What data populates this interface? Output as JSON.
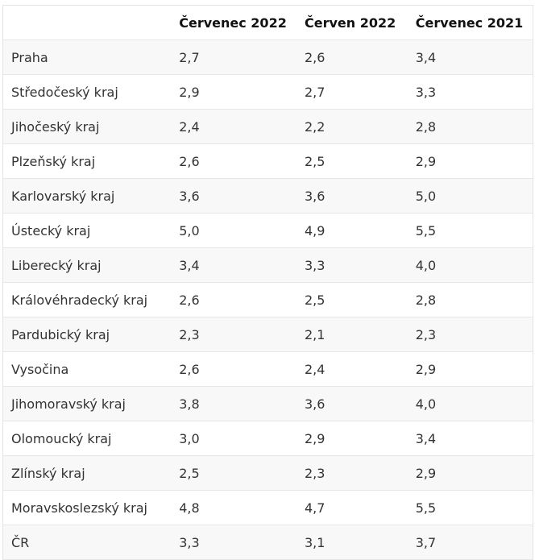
{
  "table": {
    "headers": [
      "",
      "Červenec 2022",
      "Červen 2022",
      "Červenec 2021"
    ],
    "rows": [
      [
        "Praha",
        "2,7",
        "2,6",
        "3,4"
      ],
      [
        "Středočeský kraj",
        "2,9",
        "2,7",
        "3,3"
      ],
      [
        "Jihočeský kraj",
        "2,4",
        "2,2",
        "2,8"
      ],
      [
        "Plzeňský kraj",
        "2,6",
        "2,5",
        "2,9"
      ],
      [
        "Karlovarský kraj",
        "3,6",
        "3,6",
        "5,0"
      ],
      [
        "Ústecký kraj",
        "5,0",
        "4,9",
        "5,5"
      ],
      [
        "Liberecký kraj",
        "3,4",
        "3,3",
        "4,0"
      ],
      [
        "Královéhradecký kraj",
        "2,6",
        "2,5",
        "2,8"
      ],
      [
        "Pardubický kraj",
        "2,3",
        "2,1",
        "2,3"
      ],
      [
        "Vysočina",
        "2,6",
        "2,4",
        "2,9"
      ],
      [
        "Jihomoravský kraj",
        "3,8",
        "3,6",
        "4,0"
      ],
      [
        "Olomoucký kraj",
        "3,0",
        "2,9",
        "3,4"
      ],
      [
        "Zlínský kraj",
        "2,5",
        "2,3",
        "2,9"
      ],
      [
        "Moravskoslezský kraj",
        "4,8",
        "4,7",
        "5,5"
      ],
      [
        "ČR",
        "3,3",
        "3,1",
        "3,7"
      ]
    ]
  }
}
